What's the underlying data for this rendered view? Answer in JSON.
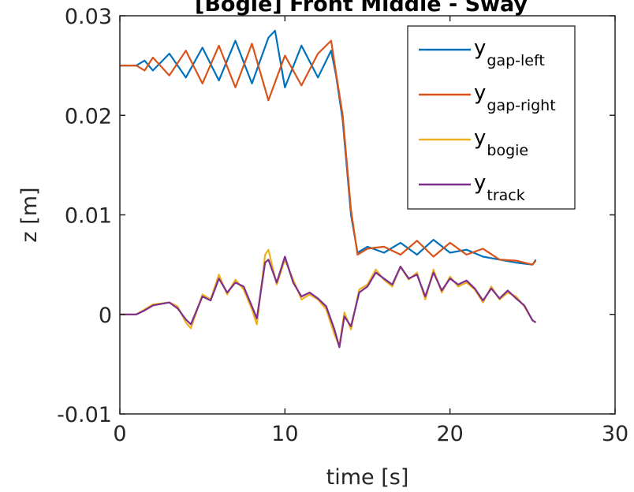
{
  "chart_data": {
    "type": "line",
    "title": "[Bogie] Front Middle - Sway",
    "xlabel": "time [s]",
    "ylabel": "z [m]",
    "xlim": [
      0,
      30
    ],
    "ylim": [
      -0.01,
      0.03
    ],
    "xticks": [
      0,
      10,
      20,
      30
    ],
    "xtick_labels": [
      "0",
      "10",
      "20",
      "30"
    ],
    "yticks": [
      -0.01,
      0,
      0.01,
      0.02,
      0.03
    ],
    "ytick_labels": [
      "-0.01",
      "0",
      "0.01",
      "0.02",
      "0.03"
    ],
    "grid": false,
    "legend_position": "top-right",
    "series": [
      {
        "name": "y",
        "subscript": "gap-left",
        "color": "#0072BD",
        "x": [
          0,
          1,
          1.5,
          2,
          3,
          4,
          5,
          6,
          7,
          8,
          9,
          9.4,
          10,
          11,
          12,
          12.8,
          13.1,
          13.5,
          14,
          14.4,
          15,
          16,
          17,
          18,
          19,
          20,
          21,
          22,
          23,
          24,
          25,
          25.2
        ],
        "y": [
          0.025,
          0.025,
          0.0255,
          0.0245,
          0.0262,
          0.0238,
          0.0268,
          0.0235,
          0.0275,
          0.0232,
          0.0278,
          0.0285,
          0.0228,
          0.027,
          0.0238,
          0.0265,
          0.024,
          0.0195,
          0.01,
          0.0062,
          0.0068,
          0.0062,
          0.0072,
          0.006,
          0.0075,
          0.0062,
          0.0065,
          0.0058,
          0.0055,
          0.0052,
          0.005,
          0.0055
        ]
      },
      {
        "name": "y",
        "subscript": "gap-right",
        "color": "#D95319",
        "x": [
          0,
          1,
          1.5,
          2,
          3,
          4,
          5,
          6,
          7,
          8,
          9,
          10,
          11,
          12,
          12.8,
          13.1,
          13.5,
          14,
          14.4,
          15,
          16,
          17,
          18,
          19,
          20,
          21,
          22,
          23,
          24,
          25,
          25.2
        ],
        "y": [
          0.025,
          0.025,
          0.0245,
          0.0258,
          0.024,
          0.0265,
          0.0232,
          0.027,
          0.0228,
          0.0272,
          0.0215,
          0.026,
          0.023,
          0.0262,
          0.0275,
          0.0242,
          0.02,
          0.0105,
          0.006,
          0.0066,
          0.0068,
          0.006,
          0.0074,
          0.0058,
          0.0072,
          0.006,
          0.0066,
          0.0055,
          0.0054,
          0.005,
          0.0054
        ]
      },
      {
        "name": "y",
        "subscript": "bogie",
        "color": "#EDB120",
        "x": [
          0,
          1,
          1.5,
          2,
          3,
          3.5,
          4,
          4.3,
          5,
          5.5,
          6,
          6.5,
          7,
          7.5,
          8,
          8.3,
          8.8,
          9,
          9.5,
          10,
          10.5,
          11,
          11.5,
          12,
          12.5,
          13,
          13.3,
          13.6,
          14,
          14.5,
          15,
          15.5,
          16,
          16.5,
          17,
          17.5,
          18,
          18.5,
          19,
          19.5,
          20,
          20.5,
          21,
          21.5,
          22,
          22.5,
          23,
          23.5,
          24,
          24.5,
          25,
          25.2
        ],
        "y": [
          0,
          0,
          0.0005,
          0.001,
          0.0012,
          0.0008,
          -0.0008,
          -0.0014,
          0.002,
          0.0015,
          0.004,
          0.002,
          0.0035,
          0.0025,
          0.0005,
          -0.001,
          0.006,
          0.0065,
          0.003,
          0.0055,
          0.0035,
          0.0015,
          0.002,
          0.0015,
          0.0005,
          -0.002,
          -0.0032,
          0.0002,
          -0.0015,
          0.0025,
          0.003,
          0.0045,
          0.0035,
          0.0028,
          0.0048,
          0.0035,
          0.0042,
          0.0015,
          0.0045,
          0.0022,
          0.0038,
          0.0028,
          0.0032,
          0.0025,
          0.0012,
          0.0028,
          0.0015,
          0.0022,
          0.0018,
          0.0008,
          -0.0006,
          -0.0008
        ]
      },
      {
        "name": "y",
        "subscript": "track",
        "color": "#7E2F8E",
        "x": [
          0,
          1,
          1.5,
          2,
          3,
          3.5,
          4,
          4.3,
          5,
          5.5,
          6,
          6.5,
          7,
          7.5,
          8,
          8.3,
          8.8,
          9,
          9.5,
          10,
          10.5,
          11,
          11.5,
          12,
          12.5,
          13,
          13.3,
          13.6,
          14,
          14.5,
          15,
          15.5,
          16,
          16.5,
          17,
          17.5,
          18,
          18.5,
          19,
          19.5,
          20,
          20.5,
          21,
          21.5,
          22,
          22.5,
          23,
          23.5,
          24,
          24.5,
          25,
          25.2
        ],
        "y": [
          0,
          0,
          0.0004,
          0.0009,
          0.0012,
          0.0006,
          -0.0005,
          -0.001,
          0.0018,
          0.0014,
          0.0036,
          0.0022,
          0.0032,
          0.0028,
          0.0008,
          -0.0004,
          0.0052,
          0.0055,
          0.0032,
          0.0058,
          0.0032,
          0.0018,
          0.0022,
          0.0016,
          0.0008,
          -0.0015,
          -0.0033,
          -0.0002,
          -0.0012,
          0.0022,
          0.0028,
          0.0042,
          0.0036,
          0.003,
          0.0048,
          0.0036,
          0.004,
          0.0018,
          0.0042,
          0.0024,
          0.0036,
          0.003,
          0.0034,
          0.0026,
          0.0014,
          0.0026,
          0.0016,
          0.0024,
          0.0016,
          0.0009,
          -0.0006,
          -0.0008
        ]
      }
    ]
  }
}
